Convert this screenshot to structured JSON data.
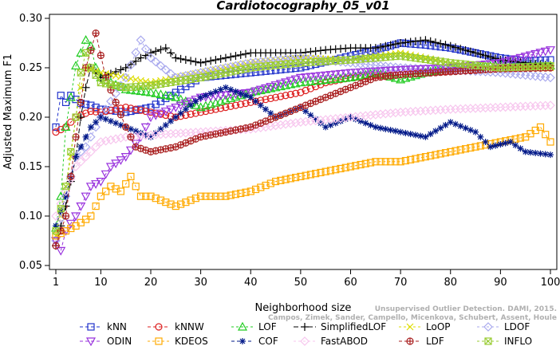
{
  "chart_data": {
    "type": "line",
    "title": "Cardiotocography_05_v01",
    "xlabel": "Neighborhood size",
    "ylabel": "Adjusted Maximum F1",
    "xlim": [
      1,
      100
    ],
    "ylim": [
      0.05,
      0.3
    ],
    "xticks": [
      1,
      10,
      20,
      30,
      40,
      50,
      60,
      70,
      80,
      90,
      100
    ],
    "yticks": [
      0.05,
      0.1,
      0.15,
      0.2,
      0.25,
      0.3
    ],
    "ytick_labels": [
      "0.05",
      "0.10",
      "0.15",
      "0.20",
      "0.25",
      "0.30"
    ],
    "grid": false,
    "legend_position": "bottom",
    "watermark": "Campos, Zimek, Sander, Campello, Micenkova, Schubert, Assent, Houle",
    "watermark_line1": "Unsupervised Outlier Detection. DAMI, 2015.",
    "series": [
      {
        "name": "kNN",
        "color": "#2233cc",
        "marker": "square",
        "dash": "4,3",
        "points": [
          [
            1,
            0.19
          ],
          [
            2,
            0.222
          ],
          [
            3,
            0.215
          ],
          [
            4,
            0.222
          ],
          [
            5,
            0.218
          ],
          [
            6,
            0.214
          ],
          [
            7,
            0.213
          ],
          [
            8,
            0.212
          ],
          [
            10,
            0.208
          ],
          [
            15,
            0.205
          ],
          [
            20,
            0.21
          ],
          [
            25,
            0.225
          ],
          [
            30,
            0.24
          ],
          [
            40,
            0.245
          ],
          [
            50,
            0.25
          ],
          [
            60,
            0.262
          ],
          [
            65,
            0.268
          ],
          [
            70,
            0.275
          ],
          [
            75,
            0.273
          ],
          [
            80,
            0.27
          ],
          [
            85,
            0.265
          ],
          [
            90,
            0.26
          ],
          [
            95,
            0.257
          ],
          [
            100,
            0.258
          ]
        ]
      },
      {
        "name": "kNNW",
        "color": "#dd2222",
        "marker": "circle",
        "dash": "4,3",
        "points": [
          [
            1,
            0.185
          ],
          [
            3,
            0.19
          ],
          [
            5,
            0.2
          ],
          [
            8,
            0.206
          ],
          [
            10,
            0.205
          ],
          [
            15,
            0.21
          ],
          [
            20,
            0.205
          ],
          [
            25,
            0.2
          ],
          [
            30,
            0.205
          ],
          [
            40,
            0.215
          ],
          [
            50,
            0.225
          ],
          [
            55,
            0.235
          ],
          [
            60,
            0.24
          ],
          [
            65,
            0.242
          ],
          [
            70,
            0.243
          ],
          [
            75,
            0.245
          ],
          [
            80,
            0.247
          ],
          [
            90,
            0.249
          ],
          [
            100,
            0.25
          ]
        ]
      },
      {
        "name": "LOF",
        "color": "#22cc22",
        "marker": "triangle-up",
        "dash": "3,3",
        "points": [
          [
            1,
            0.088
          ],
          [
            2,
            0.12
          ],
          [
            3,
            0.19
          ],
          [
            4,
            0.22
          ],
          [
            5,
            0.252
          ],
          [
            6,
            0.265
          ],
          [
            7,
            0.278
          ],
          [
            8,
            0.272
          ],
          [
            9,
            0.25
          ],
          [
            10,
            0.24
          ],
          [
            15,
            0.228
          ],
          [
            20,
            0.225
          ],
          [
            25,
            0.22
          ],
          [
            30,
            0.21
          ],
          [
            40,
            0.225
          ],
          [
            50,
            0.235
          ],
          [
            60,
            0.24
          ],
          [
            65,
            0.245
          ],
          [
            70,
            0.238
          ],
          [
            75,
            0.245
          ],
          [
            80,
            0.25
          ],
          [
            85,
            0.25
          ],
          [
            90,
            0.253
          ],
          [
            100,
            0.252
          ]
        ]
      },
      {
        "name": "SimplifiedLOF",
        "color": "#000000",
        "marker": "plus",
        "dash": "6,3",
        "points": [
          [
            1,
            0.07
          ],
          [
            2,
            0.09
          ],
          [
            3,
            0.11
          ],
          [
            4,
            0.135
          ],
          [
            5,
            0.16
          ],
          [
            6,
            0.2
          ],
          [
            7,
            0.23
          ],
          [
            8,
            0.25
          ],
          [
            10,
            0.24
          ],
          [
            15,
            0.25
          ],
          [
            18,
            0.26
          ],
          [
            20,
            0.265
          ],
          [
            23,
            0.27
          ],
          [
            25,
            0.26
          ],
          [
            30,
            0.255
          ],
          [
            40,
            0.265
          ],
          [
            50,
            0.265
          ],
          [
            55,
            0.268
          ],
          [
            60,
            0.27
          ],
          [
            65,
            0.27
          ],
          [
            70,
            0.275
          ],
          [
            75,
            0.278
          ],
          [
            80,
            0.272
          ],
          [
            85,
            0.265
          ],
          [
            90,
            0.258
          ],
          [
            100,
            0.252
          ]
        ]
      },
      {
        "name": "LoOP",
        "color": "#dddd00",
        "marker": "x",
        "dash": "3,3",
        "points": [
          [
            1,
            0.08
          ],
          [
            2,
            0.1
          ],
          [
            3,
            0.13
          ],
          [
            4,
            0.16
          ],
          [
            5,
            0.2
          ],
          [
            6,
            0.23
          ],
          [
            7,
            0.25
          ],
          [
            10,
            0.245
          ],
          [
            15,
            0.24
          ],
          [
            20,
            0.235
          ],
          [
            30,
            0.245
          ],
          [
            40,
            0.255
          ],
          [
            50,
            0.26
          ],
          [
            60,
            0.258
          ],
          [
            70,
            0.265
          ],
          [
            80,
            0.255
          ],
          [
            90,
            0.25
          ],
          [
            100,
            0.25
          ]
        ]
      },
      {
        "name": "LDOF",
        "color": "#aaaaee",
        "marker": "diamond",
        "dash": "3,3",
        "points": [
          [
            1,
            0.075
          ],
          [
            3,
            0.12
          ],
          [
            5,
            0.16
          ],
          [
            7,
            0.17
          ],
          [
            10,
            0.2
          ],
          [
            15,
            0.24
          ],
          [
            18,
            0.278
          ],
          [
            20,
            0.26
          ],
          [
            25,
            0.24
          ],
          [
            30,
            0.245
          ],
          [
            40,
            0.255
          ],
          [
            50,
            0.26
          ],
          [
            60,
            0.255
          ],
          [
            70,
            0.25
          ],
          [
            80,
            0.248
          ],
          [
            90,
            0.245
          ],
          [
            100,
            0.24
          ]
        ]
      },
      {
        "name": "ODIN",
        "color": "#9933dd",
        "marker": "triangle-down",
        "dash": "4,3",
        "points": [
          [
            1,
            0.075
          ],
          [
            2,
            0.065
          ],
          [
            3,
            0.085
          ],
          [
            5,
            0.1
          ],
          [
            8,
            0.13
          ],
          [
            10,
            0.135
          ],
          [
            12,
            0.15
          ],
          [
            15,
            0.16
          ],
          [
            18,
            0.18
          ],
          [
            20,
            0.2
          ],
          [
            25,
            0.21
          ],
          [
            30,
            0.22
          ],
          [
            40,
            0.225
          ],
          [
            50,
            0.24
          ],
          [
            60,
            0.245
          ],
          [
            70,
            0.248
          ],
          [
            80,
            0.25
          ],
          [
            90,
            0.255
          ],
          [
            100,
            0.268
          ]
        ]
      },
      {
        "name": "KDEOS",
        "color": "#ffaa00",
        "marker": "square",
        "dash": "3,3",
        "points": [
          [
            1,
            0.08
          ],
          [
            3,
            0.085
          ],
          [
            5,
            0.09
          ],
          [
            8,
            0.1
          ],
          [
            10,
            0.12
          ],
          [
            12,
            0.13
          ],
          [
            14,
            0.125
          ],
          [
            16,
            0.14
          ],
          [
            18,
            0.12
          ],
          [
            20,
            0.12
          ],
          [
            25,
            0.11
          ],
          [
            30,
            0.12
          ],
          [
            35,
            0.12
          ],
          [
            40,
            0.125
          ],
          [
            45,
            0.135
          ],
          [
            50,
            0.14
          ],
          [
            55,
            0.145
          ],
          [
            60,
            0.15
          ],
          [
            65,
            0.155
          ],
          [
            70,
            0.155
          ],
          [
            75,
            0.16
          ],
          [
            80,
            0.165
          ],
          [
            85,
            0.17
          ],
          [
            90,
            0.175
          ],
          [
            95,
            0.18
          ],
          [
            98,
            0.19
          ],
          [
            100,
            0.175
          ]
        ]
      },
      {
        "name": "COF",
        "color": "#001888",
        "marker": "star",
        "dash": "4,3",
        "points": [
          [
            1,
            0.09
          ],
          [
            3,
            0.12
          ],
          [
            5,
            0.16
          ],
          [
            8,
            0.19
          ],
          [
            10,
            0.2
          ],
          [
            15,
            0.19
          ],
          [
            20,
            0.18
          ],
          [
            25,
            0.2
          ],
          [
            30,
            0.22
          ],
          [
            35,
            0.23
          ],
          [
            40,
            0.22
          ],
          [
            45,
            0.2
          ],
          [
            50,
            0.21
          ],
          [
            55,
            0.19
          ],
          [
            60,
            0.2
          ],
          [
            65,
            0.19
          ],
          [
            70,
            0.185
          ],
          [
            75,
            0.18
          ],
          [
            80,
            0.195
          ],
          [
            85,
            0.185
          ],
          [
            88,
            0.17
          ],
          [
            92,
            0.175
          ],
          [
            95,
            0.165
          ],
          [
            100,
            0.162
          ]
        ]
      },
      {
        "name": "FastABOD",
        "color": "#f7c6ee",
        "marker": "diamond",
        "dash": "3,3",
        "points": [
          [
            1,
            0.1
          ],
          [
            5,
            0.15
          ],
          [
            10,
            0.175
          ],
          [
            15,
            0.18
          ],
          [
            20,
            0.182
          ],
          [
            30,
            0.185
          ],
          [
            40,
            0.188
          ],
          [
            50,
            0.195
          ],
          [
            60,
            0.2
          ],
          [
            70,
            0.205
          ],
          [
            80,
            0.208
          ],
          [
            90,
            0.21
          ],
          [
            100,
            0.212
          ]
        ]
      },
      {
        "name": "LDF",
        "color": "#aa2222",
        "marker": "circle-plus",
        "dash": "4,3",
        "points": [
          [
            1,
            0.07
          ],
          [
            3,
            0.1
          ],
          [
            5,
            0.18
          ],
          [
            7,
            0.25
          ],
          [
            9,
            0.285
          ],
          [
            11,
            0.24
          ],
          [
            13,
            0.215
          ],
          [
            15,
            0.19
          ],
          [
            17,
            0.17
          ],
          [
            20,
            0.165
          ],
          [
            25,
            0.17
          ],
          [
            30,
            0.18
          ],
          [
            35,
            0.185
          ],
          [
            40,
            0.19
          ],
          [
            45,
            0.2
          ],
          [
            50,
            0.21
          ],
          [
            55,
            0.22
          ],
          [
            60,
            0.23
          ],
          [
            65,
            0.24
          ],
          [
            70,
            0.243
          ],
          [
            80,
            0.246
          ],
          [
            90,
            0.249
          ],
          [
            100,
            0.25
          ]
        ]
      },
      {
        "name": "INFLO",
        "color": "#99cc33",
        "marker": "box-x",
        "dash": "3,3",
        "points": [
          [
            1,
            0.085
          ],
          [
            3,
            0.13
          ],
          [
            5,
            0.2
          ],
          [
            6,
            0.245
          ],
          [
            7,
            0.265
          ],
          [
            8,
            0.25
          ],
          [
            10,
            0.235
          ],
          [
            15,
            0.23
          ],
          [
            20,
            0.232
          ],
          [
            30,
            0.24
          ],
          [
            40,
            0.25
          ],
          [
            50,
            0.255
          ],
          [
            60,
            0.258
          ],
          [
            70,
            0.262
          ],
          [
            80,
            0.255
          ],
          [
            90,
            0.25
          ],
          [
            100,
            0.252
          ]
        ]
      }
    ]
  }
}
